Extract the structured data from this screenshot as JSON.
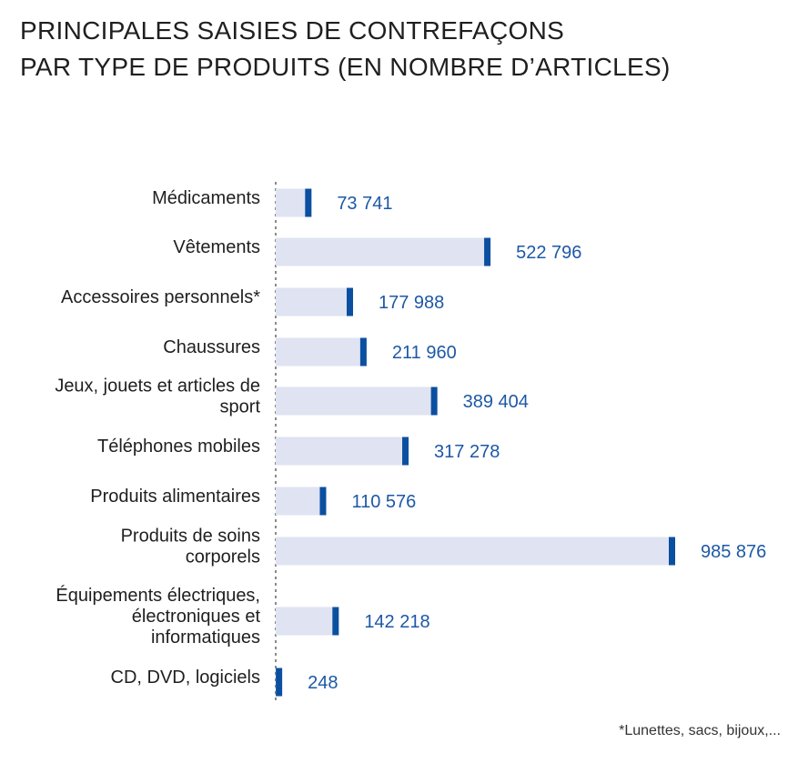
{
  "title_line1": "PRINCIPALES SAISIES DE CONTREFAÇONS",
  "title_line2": "PAR TYPE DE PRODUITS  (EN NOMBRE D’ARTICLES)",
  "footnote": "*Lunettes, sacs, bijoux,...",
  "colors": {
    "track": "#dfe3f2",
    "marker": "#0b4fa0",
    "value_text": "#1d58a6",
    "axis": "#8a8a8a"
  },
  "chart_data": {
    "type": "bar",
    "orientation": "horizontal",
    "title": "PRINCIPALES SAISIES DE CONTREFAÇONS PAR TYPE DE PRODUITS  (EN NOMBRE D’ARTICLES)",
    "categories": [
      [
        "Médicaments"
      ],
      [
        "Vêtements"
      ],
      [
        "Accessoires personnels*"
      ],
      [
        "Chaussures"
      ],
      [
        "Jeux, jouets et articles de",
        "sport"
      ],
      [
        "Téléphones mobiles"
      ],
      [
        "Produits alimentaires"
      ],
      [
        "Produits de soins",
        "corporels"
      ],
      [
        "Équipements électriques,",
        "électroniques et",
        "informatiques"
      ],
      [
        "CD, DVD, logiciels"
      ]
    ],
    "values": [
      73741,
      522796,
      177988,
      211960,
      389404,
      317278,
      110576,
      985876,
      142218,
      248
    ],
    "value_labels": [
      "73 741",
      "522 796",
      "177 988",
      "211 960",
      "389 404",
      "317 278",
      "110 576",
      "985 876",
      "142 218",
      "248"
    ],
    "xlim": [
      0,
      985876
    ],
    "grid": false,
    "legend": "none"
  }
}
